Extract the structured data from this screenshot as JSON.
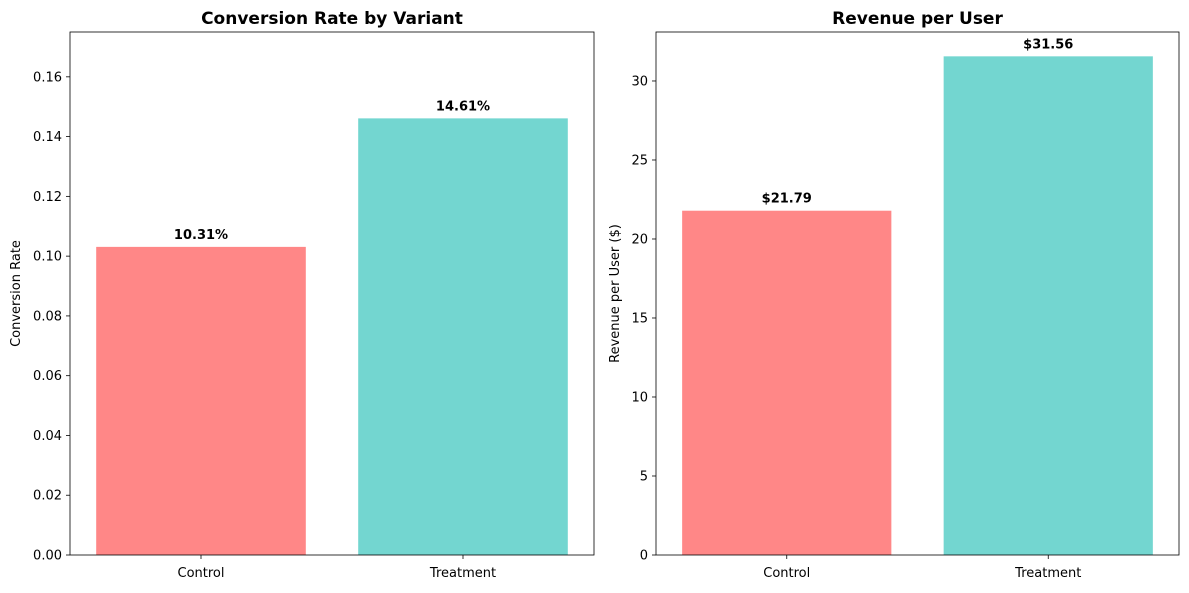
{
  "colors": {
    "control": "#ff8787",
    "treatment": "#73d6d0",
    "axis": "#000000",
    "background": "#ffffff"
  },
  "chart_data": [
    {
      "type": "bar",
      "title": "Conversion Rate by Variant",
      "xlabel": "",
      "ylabel": "Conversion Rate",
      "categories": [
        "Control",
        "Treatment"
      ],
      "values": [
        0.1031,
        0.1461
      ],
      "data_labels": [
        "10.31%",
        "14.61%"
      ],
      "ylim": [
        0,
        0.175
      ],
      "yticks": [
        0.0,
        0.02,
        0.04,
        0.06,
        0.08,
        0.1,
        0.12,
        0.14,
        0.16
      ],
      "ytick_labels": [
        "0.00",
        "0.02",
        "0.04",
        "0.06",
        "0.08",
        "0.10",
        "0.12",
        "0.14",
        "0.16"
      ],
      "bar_colors": [
        "#ff8787",
        "#73d6d0"
      ],
      "grid": false,
      "legend": "none"
    },
    {
      "type": "bar",
      "title": "Revenue per User",
      "xlabel": "",
      "ylabel": "Revenue per User ($)",
      "categories": [
        "Control",
        "Treatment"
      ],
      "values": [
        21.79,
        31.56
      ],
      "data_labels": [
        "$21.79",
        "$31.56"
      ],
      "ylim": [
        0,
        33.1
      ],
      "yticks": [
        0,
        5,
        10,
        15,
        20,
        25,
        30
      ],
      "ytick_labels": [
        "0",
        "5",
        "10",
        "15",
        "20",
        "25",
        "30"
      ],
      "bar_colors": [
        "#ff8787",
        "#73d6d0"
      ],
      "grid": false,
      "legend": "none"
    }
  ]
}
